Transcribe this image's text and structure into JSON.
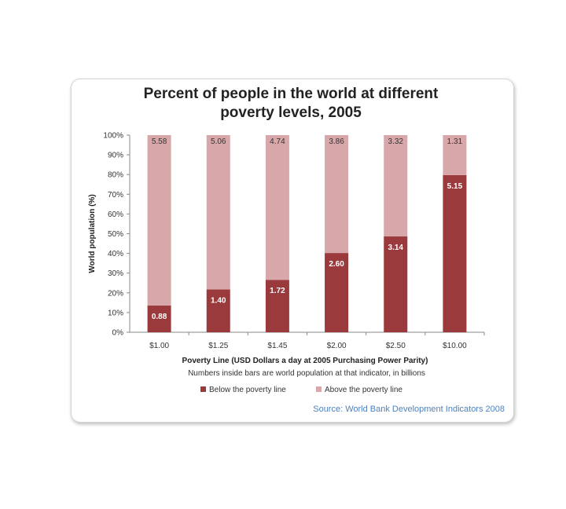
{
  "chart_data": {
    "type": "bar",
    "stacked": true,
    "title": [
      "Percent of people in the world at different",
      "poverty levels, 2005"
    ],
    "xlabel": "Poverty Line (USD Dollars a day at 2005 Purchasing Power Parity)",
    "xlabel_note": "Numbers inside bars are world population at that indicator, in billions",
    "ylabel": "World population (%)",
    "ylim": [
      0,
      100
    ],
    "yticks": [
      "0%",
      "10%",
      "20%",
      "30%",
      "40%",
      "50%",
      "60%",
      "70%",
      "80%",
      "90%",
      "100%"
    ],
    "categories": [
      "$1.00",
      "$1.25",
      "$1.45",
      "$2.00",
      "$2.50",
      "$10.00"
    ],
    "series": [
      {
        "name": "Below the poverty line",
        "color": "#9b3a3c",
        "values": [
          13.6,
          21.7,
          26.6,
          40.2,
          48.6,
          79.7
        ],
        "labels": [
          "0.88",
          "1.40",
          "1.72",
          "2.60",
          "3.14",
          "5.15"
        ]
      },
      {
        "name": "Above the poverty line",
        "color": "#d8a7aa",
        "values": [
          86.4,
          78.3,
          73.4,
          59.8,
          51.4,
          20.3
        ],
        "labels": [
          "5.58",
          "5.06",
          "4.74",
          "3.86",
          "3.32",
          "1.31"
        ]
      }
    ],
    "grid": false,
    "legend": "bottom"
  },
  "source": "Source: World Bank Development Indicators 2008"
}
